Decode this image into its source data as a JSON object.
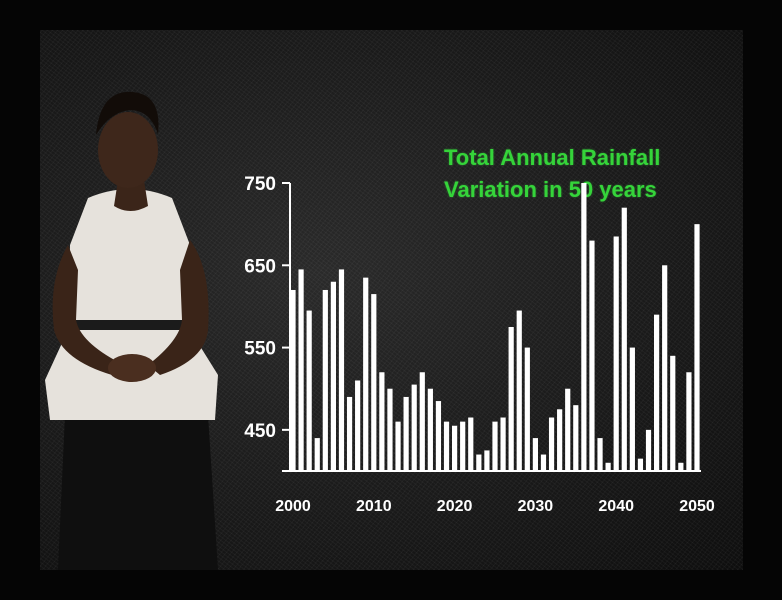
{
  "chart_data": {
    "type": "bar",
    "title_lines": [
      "Total Annual Rainfall",
      "Variation in 50 years"
    ],
    "ylim": [
      400,
      750
    ],
    "yticks": [
      450,
      550,
      650,
      750
    ],
    "xticks": [
      2000,
      2010,
      2020,
      2030,
      2040,
      2050
    ],
    "bar_color": "#ffffff",
    "title_color": "#35d43a",
    "x": [
      2000,
      2001,
      2002,
      2003,
      2004,
      2005,
      2006,
      2007,
      2008,
      2009,
      2010,
      2011,
      2012,
      2013,
      2014,
      2015,
      2016,
      2017,
      2018,
      2019,
      2020,
      2021,
      2022,
      2023,
      2024,
      2025,
      2026,
      2027,
      2028,
      2029,
      2030,
      2031,
      2032,
      2033,
      2034,
      2035,
      2036,
      2037,
      2038,
      2039,
      2040,
      2041,
      2042,
      2043,
      2044,
      2045,
      2046,
      2047,
      2048,
      2049,
      2050
    ],
    "values": [
      620,
      645,
      595,
      440,
      620,
      630,
      645,
      490,
      510,
      635,
      615,
      520,
      500,
      460,
      490,
      505,
      520,
      500,
      485,
      460,
      455,
      460,
      465,
      420,
      425,
      460,
      465,
      575,
      595,
      550,
      440,
      420,
      465,
      475,
      500,
      480,
      750,
      680,
      440,
      410,
      685,
      720,
      550,
      415,
      450,
      590,
      650,
      540,
      410,
      520,
      700
    ]
  }
}
